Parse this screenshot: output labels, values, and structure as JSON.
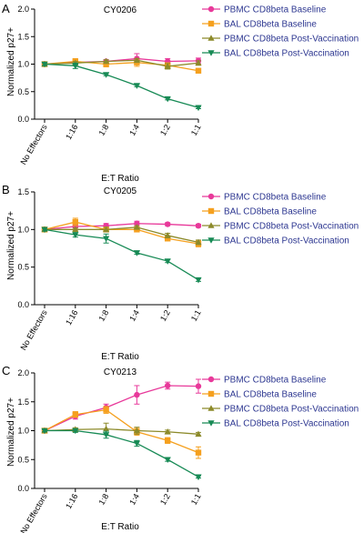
{
  "series_styles": [
    {
      "name": "PBMC CD8beta Baseline",
      "color": "#e8399a",
      "marker": "circle"
    },
    {
      "name": "BAL CD8beta Baseline",
      "color": "#f5a01e",
      "marker": "square"
    },
    {
      "name": "PBMC CD8beta Post-Vaccination",
      "color": "#8c8a2a",
      "marker": "triangle-up"
    },
    {
      "name": "BAL CD8beta Post-Vaccination",
      "color": "#178a55",
      "marker": "triangle-down"
    }
  ],
  "legend_text_color": "#2c3690",
  "chart_data": [
    {
      "type": "line",
      "panel": "A",
      "title": "CY0206",
      "xlabel": "E:T Ratio",
      "ylabel": "Normalized p27+",
      "categories": [
        "No Effectors",
        "1:16",
        "1:8",
        "1:4",
        "1:2",
        "1:1"
      ],
      "ylim": [
        0,
        2.0
      ],
      "yticks": [
        "0.0",
        "0.5",
        "1.0",
        "1.5",
        "2.0"
      ],
      "series": [
        {
          "name": "PBMC CD8beta Baseline",
          "values": [
            1.0,
            1.03,
            1.05,
            1.1,
            1.05,
            1.06
          ],
          "errors": [
            0.03,
            0.03,
            0.03,
            0.09,
            0.05,
            0.05
          ]
        },
        {
          "name": "BAL CD8beta Baseline",
          "values": [
            1.0,
            1.05,
            1.0,
            1.03,
            0.98,
            0.88
          ],
          "errors": [
            0.03,
            0.05,
            0.05,
            0.07,
            0.04,
            0.03
          ]
        },
        {
          "name": "PBMC CD8beta Post-Vaccination",
          "values": [
            1.0,
            1.02,
            1.05,
            1.07,
            0.96,
            1.02
          ],
          "errors": [
            0.02,
            0.03,
            0.03,
            0.03,
            0.05,
            0.04
          ]
        },
        {
          "name": "BAL CD8beta Post-Vaccination",
          "values": [
            1.0,
            0.97,
            0.81,
            0.61,
            0.37,
            0.21
          ],
          "errors": [
            0.03,
            0.05,
            0.02,
            0.02,
            0.02,
            0.02
          ]
        }
      ]
    },
    {
      "type": "line",
      "panel": "B",
      "title": "CY0205",
      "xlabel": "E:T Ratio",
      "ylabel": "Normalized p27+",
      "categories": [
        "No Effectors",
        "1:16",
        "1:8",
        "1:4",
        "1:2",
        "1:1"
      ],
      "ylim": [
        0,
        1.5
      ],
      "yticks": [
        "0.0",
        "0.5",
        "1.0",
        "1.5"
      ],
      "series": [
        {
          "name": "PBMC CD8beta Baseline",
          "values": [
            1.0,
            1.04,
            1.05,
            1.08,
            1.07,
            1.05
          ],
          "errors": [
            0.02,
            0.02,
            0.03,
            0.03,
            0.02,
            0.02
          ]
        },
        {
          "name": "BAL CD8beta Baseline",
          "values": [
            1.0,
            1.1,
            1.0,
            1.0,
            0.88,
            0.81
          ],
          "errors": [
            0.02,
            0.05,
            0.03,
            0.03,
            0.03,
            0.04
          ]
        },
        {
          "name": "PBMC CD8beta Post-Vaccination",
          "values": [
            1.0,
            1.0,
            1.0,
            1.03,
            0.92,
            0.83
          ],
          "errors": [
            0.02,
            0.02,
            0.03,
            0.02,
            0.03,
            0.03
          ]
        },
        {
          "name": "BAL CD8beta Post-Vaccination",
          "values": [
            1.0,
            0.93,
            0.88,
            0.69,
            0.58,
            0.33
          ],
          "errors": [
            0.02,
            0.03,
            0.06,
            0.02,
            0.02,
            0.02
          ]
        }
      ]
    },
    {
      "type": "line",
      "panel": "C",
      "title": "CY0213",
      "xlabel": "E:T Ratio",
      "ylabel": "Normalized p27+",
      "categories": [
        "No Effectors",
        "1:16",
        "1:8",
        "1:4",
        "1:2",
        "1:1"
      ],
      "ylim": [
        0,
        2.0
      ],
      "yticks": [
        "0.0",
        "0.5",
        "1.0",
        "1.5",
        "2.0"
      ],
      "series": [
        {
          "name": "PBMC CD8beta Baseline",
          "values": [
            1.0,
            1.25,
            1.4,
            1.62,
            1.78,
            1.77
          ],
          "errors": [
            0.03,
            0.05,
            0.06,
            0.16,
            0.06,
            0.12
          ]
        },
        {
          "name": "BAL CD8beta Baseline",
          "values": [
            1.0,
            1.28,
            1.36,
            0.98,
            0.83,
            0.62
          ],
          "errors": [
            0.03,
            0.05,
            0.06,
            0.06,
            0.05,
            0.1
          ]
        },
        {
          "name": "PBMC CD8beta Post-Vaccination",
          "values": [
            1.0,
            1.02,
            1.03,
            1.0,
            0.98,
            0.94
          ],
          "errors": [
            0.02,
            0.03,
            0.1,
            0.06,
            0.03,
            0.03
          ]
        },
        {
          "name": "BAL CD8beta Post-Vaccination",
          "values": [
            1.0,
            1.0,
            0.93,
            0.78,
            0.5,
            0.2
          ],
          "errors": [
            0.02,
            0.03,
            0.06,
            0.05,
            0.03,
            0.02
          ]
        }
      ]
    }
  ]
}
